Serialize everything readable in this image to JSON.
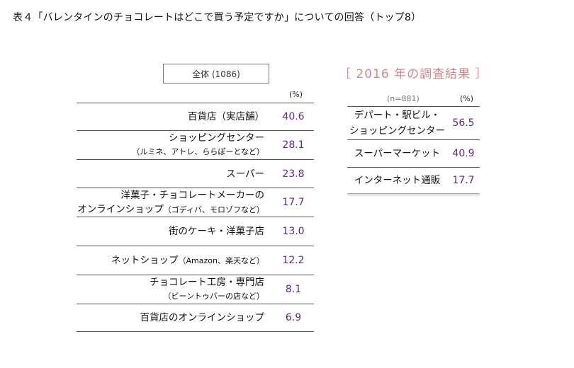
{
  "title": "表４「バレンタインのチョコレートはどこで買う予定ですか」についての回答（トップ8）",
  "left_table": {
    "total_label": "全体 (1086)",
    "pct_header": "(%)",
    "rows": [
      {
        "label": "百貨店（実店舗）",
        "label2": "",
        "value": "40.6"
      },
      {
        "label": "ショッピングセンター",
        "label2": "（ルミネ、アトレ、ららぽーとなど）",
        "value": "28.1"
      },
      {
        "label": "スーパー",
        "label2": "",
        "value": "23.8"
      },
      {
        "label": "洋菓子・チョコレートメーカーの",
        "label2": "オンラインショップ",
        "label2small": "（ゴディバ、モロゾフなど）",
        "value": "17.7"
      },
      {
        "label": "街のケーキ・洋菓子店",
        "label2": "",
        "value": "13.0"
      },
      {
        "label": "ネットショップ",
        "labelsmall": "（Amazon、楽天など）",
        "label2": "",
        "value": "12.2"
      },
      {
        "label": "チョコレート工房・専門店",
        "label2": "（ビーントゥバーの店など）",
        "value": "8.1"
      },
      {
        "label": "百貨店のオンラインショップ",
        "label2": "",
        "value": "6.9"
      }
    ]
  },
  "right_table": {
    "heading": "［ 2016 年の調査結果 ］",
    "n_label": "(n=881)",
    "pct_header": "(%)",
    "rows": [
      {
        "label": "デパート・駅ビル・",
        "label2": "ショッピングセンター",
        "value": "56.5"
      },
      {
        "label": "スーパーマーケット",
        "label2": "",
        "value": "40.9"
      },
      {
        "label": "インターネット通販",
        "label2": "",
        "value": "17.7"
      }
    ]
  }
}
